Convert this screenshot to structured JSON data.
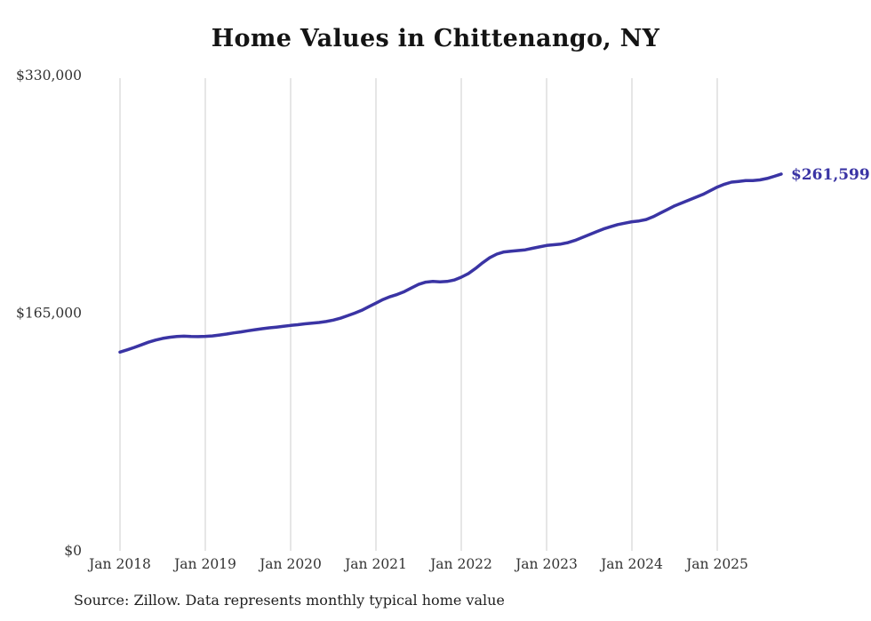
{
  "chart_data": {
    "type": "line",
    "title": "Home Values in Chittenango, NY",
    "source_note": "Source: Zillow. Data represents monthly typical home value",
    "xlabel": "",
    "ylabel": "",
    "ylim": [
      0,
      330000
    ],
    "grid": "vertical-at-each-january",
    "legend": "none",
    "line_color": "#3a34a4",
    "gridline_color": "#cccccc",
    "axis_text_color": "#333333",
    "end_label": "$261,599",
    "y_ticks": [
      {
        "value": 0,
        "label": "$0"
      },
      {
        "value": 165000,
        "label": "$165,000"
      },
      {
        "value": 330000,
        "label": "$330,000"
      }
    ],
    "x_tick_labels": [
      "Jan 2018",
      "Jan 2019",
      "Jan 2020",
      "Jan 2021",
      "Jan 2022",
      "Jan 2023",
      "Jan 2024",
      "Jan 2025"
    ],
    "series": [
      {
        "name": "Typical home value",
        "x_start": "2018-01",
        "x_interval": "monthly",
        "values": [
          138000,
          139500,
          141200,
          143000,
          144800,
          146300,
          147500,
          148300,
          148800,
          149000,
          148800,
          148700,
          148900,
          149200,
          149800,
          150500,
          151300,
          152000,
          152800,
          153500,
          154200,
          154800,
          155300,
          155900,
          156500,
          157000,
          157600,
          158000,
          158500,
          159200,
          160200,
          161500,
          163200,
          165000,
          167000,
          169500,
          172000,
          174500,
          176500,
          178000,
          180000,
          182500,
          185000,
          186500,
          187000,
          186800,
          187000,
          188000,
          190000,
          192500,
          196000,
          200000,
          203500,
          206000,
          207500,
          208000,
          208500,
          209000,
          210000,
          211000,
          212000,
          212500,
          213000,
          214000,
          215500,
          217500,
          219500,
          221500,
          223500,
          225000,
          226500,
          227500,
          228500,
          229000,
          230000,
          232000,
          234500,
          237000,
          239500,
          241500,
          243500,
          245500,
          247500,
          250000,
          252500,
          254500,
          256000,
          256500,
          257000,
          257000,
          257500,
          258500,
          260000,
          261599
        ]
      }
    ]
  }
}
